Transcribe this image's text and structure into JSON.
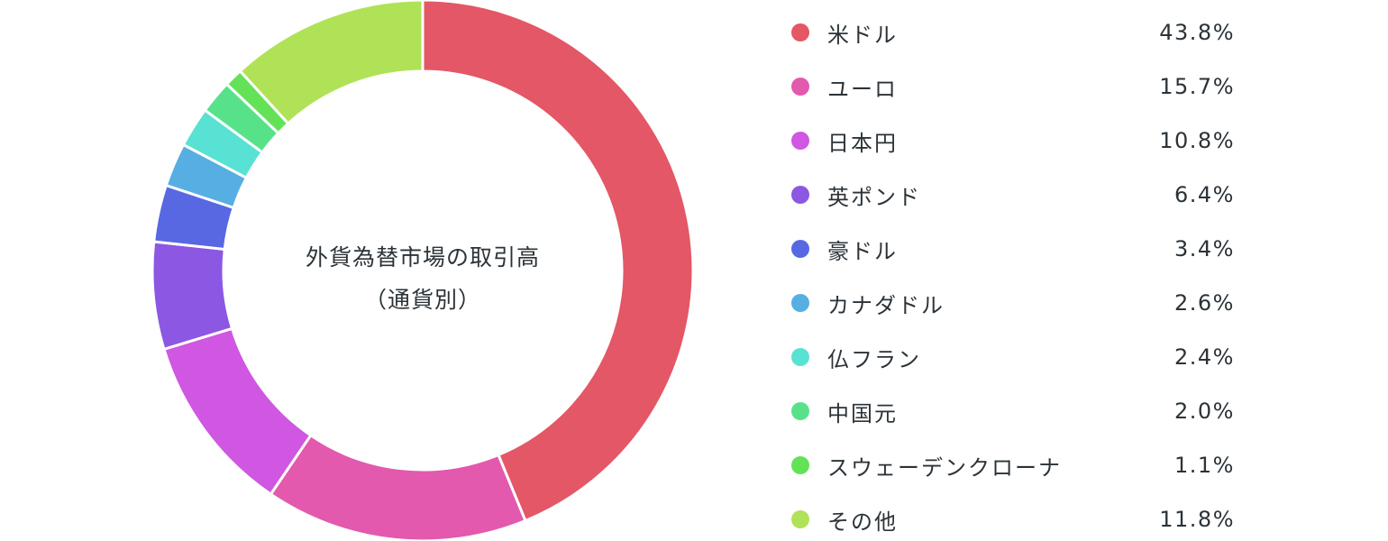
{
  "chart_data": {
    "type": "pie",
    "donut": true,
    "title_lines": [
      "外貨為替市場の取引高",
      "（通貨別）"
    ],
    "legend_position": "right",
    "categories": [
      "米ドル",
      "ユーロ",
      "日本円",
      "英ポンド",
      "豪ドル",
      "カナダドル",
      "仏フラン",
      "中国元",
      "スウェーデンクローナ",
      "その他"
    ],
    "values": [
      43.8,
      15.7,
      10.8,
      6.4,
      3.4,
      2.6,
      2.4,
      2.0,
      1.1,
      11.8
    ],
    "value_labels": [
      "43.8%",
      "15.7%",
      "10.8%",
      "6.4%",
      "3.4%",
      "2.6%",
      "2.4%",
      "2.0%",
      "1.1%",
      "11.8%"
    ],
    "colors": [
      "#e35766",
      "#e259ad",
      "#cf57e2",
      "#8c57e2",
      "#5768e2",
      "#57aee2",
      "#57e2d3",
      "#57e28a",
      "#63e257",
      "#b0e257"
    ]
  }
}
